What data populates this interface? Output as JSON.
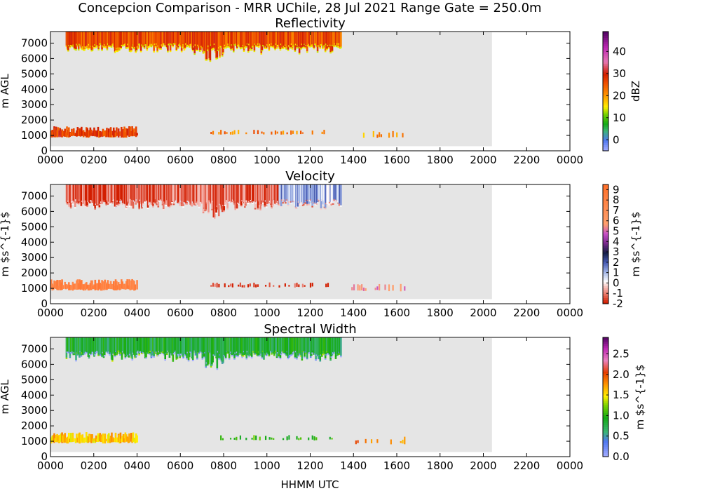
{
  "figure": {
    "title": "Concepcion Comparison - MRR UChile, 28 Jul 2021 Range Gate = 250.0m",
    "xlabel": "HHMM UTC"
  },
  "x_ticks": [
    "0000",
    "0200",
    "0400",
    "0600",
    "0800",
    "1000",
    "1200",
    "1400",
    "1600",
    "1800",
    "2000",
    "2200",
    "0000"
  ],
  "y_ticks": [
    "0",
    "1000",
    "2000",
    "3000",
    "4000",
    "5000",
    "6000",
    "7000"
  ],
  "colors": {
    "no_data": "#e5e5e5",
    "axes": "#000000"
  },
  "chart_data": [
    {
      "type": "heatmap",
      "title": "Reflectivity",
      "ylabel": "m AGL",
      "colorbar_label": "dBZ",
      "colorbar_ticks": [
        0,
        10,
        20,
        30,
        40
      ],
      "colorbar_range": [
        -5,
        49
      ],
      "xlim_hours": [
        0,
        24
      ],
      "ylim": [
        0,
        7750
      ],
      "data_coverage_hours": [
        0,
        20.4
      ],
      "upper_layer": {
        "start_hour": 0.7,
        "end_hour": 13.4,
        "base_m": 7000,
        "top_m": 7750,
        "typical_value": 26
      },
      "lower_segments": [
        {
          "start_hour": 0.0,
          "end_hour": 4.0,
          "base_m": 850,
          "top_m": 1600,
          "typical_value": 27
        },
        {
          "start_hour": 7.3,
          "end_hour": 13.0,
          "base_m": 1050,
          "top_m": 1400,
          "typical_value": 22
        },
        {
          "start_hour": 13.9,
          "end_hour": 16.4,
          "base_m": 800,
          "top_m": 1300,
          "typical_value": 20
        }
      ]
    },
    {
      "type": "heatmap",
      "title": "Velocity",
      "ylabel": "m $s^{-1}$",
      "colorbar_label": "m $s^{-1}$",
      "colorbar_ticks": [
        9,
        8,
        7,
        6,
        5,
        4,
        3,
        2,
        1,
        0,
        -1,
        -2
      ],
      "colorbar_range": [
        -2,
        9.5
      ],
      "xlim_hours": [
        0,
        24
      ],
      "ylim": [
        0,
        7750
      ],
      "data_coverage_hours": [
        0,
        20.4
      ],
      "upper_layer": {
        "start_hour": 0.7,
        "end_hour": 13.4,
        "base_m": 6800,
        "top_m": 7750,
        "typical_value": -1.5
      },
      "lower_segments": [
        {
          "start_hour": 0.0,
          "end_hour": 4.0,
          "base_m": 850,
          "top_m": 1600,
          "typical_value": 8
        },
        {
          "start_hour": 7.3,
          "end_hour": 13.0,
          "base_m": 1050,
          "top_m": 1400,
          "typical_value": -1.8
        },
        {
          "start_hour": 13.9,
          "end_hour": 16.4,
          "base_m": 800,
          "top_m": 1300,
          "typical_value": 5.5
        }
      ]
    },
    {
      "type": "heatmap",
      "title": "Spectral Width",
      "ylabel": "m AGL",
      "colorbar_label": "m $s^{-1}$",
      "colorbar_ticks": [
        "0.0",
        "0.5",
        "1.0",
        "1.5",
        "2.0",
        "2.5"
      ],
      "colorbar_range": [
        0,
        2.9
      ],
      "xlim_hours": [
        0,
        24
      ],
      "ylim": [
        0,
        7750
      ],
      "data_coverage_hours": [
        0,
        20.4
      ],
      "upper_layer": {
        "start_hour": 0.7,
        "end_hour": 13.4,
        "base_m": 6900,
        "top_m": 7750,
        "typical_value": 0.8
      },
      "lower_segments": [
        {
          "start_hour": 0.0,
          "end_hour": 4.0,
          "base_m": 850,
          "top_m": 1600,
          "typical_value": 1.6
        },
        {
          "start_hour": 7.3,
          "end_hour": 13.0,
          "base_m": 1050,
          "top_m": 1400,
          "typical_value": 1.0
        },
        {
          "start_hour": 13.9,
          "end_hour": 16.4,
          "base_m": 800,
          "top_m": 1300,
          "typical_value": 1.8
        }
      ]
    }
  ]
}
